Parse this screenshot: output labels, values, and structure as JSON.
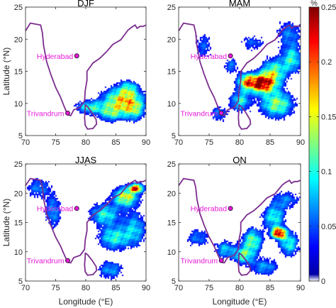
{
  "figure": {
    "panels": [
      {
        "title": "DJF",
        "show_ylabel": true,
        "show_xlabel": false,
        "intensity": 0.35,
        "blobs": [
          [
            86,
            10.5,
            3.2,
            2.0,
            0.16
          ],
          [
            80.5,
            9.5,
            2.2,
            1.0,
            0.1
          ],
          [
            84,
            8.5,
            2.0,
            1.2,
            0.08
          ],
          [
            88,
            9,
            1.6,
            1.6,
            0.08
          ],
          [
            87,
            12.5,
            1.5,
            1.2,
            0.07
          ]
        ]
      },
      {
        "title": "MAM",
        "show_ylabel": false,
        "show_xlabel": false,
        "intensity": 1.0,
        "blobs": [
          [
            83.5,
            13.2,
            2.0,
            1.4,
            0.24
          ],
          [
            81,
            13.5,
            1.4,
            1.2,
            0.15
          ],
          [
            85.5,
            15,
            2.0,
            2.0,
            0.12
          ],
          [
            86,
            10,
            2.6,
            2.0,
            0.13
          ],
          [
            80,
            10.5,
            1.6,
            1.6,
            0.1
          ],
          [
            88.5,
            17,
            1.6,
            2.0,
            0.1
          ],
          [
            78.5,
            16,
            1.3,
            1.2,
            0.06
          ],
          [
            74,
            19,
            1.6,
            2.4,
            0.05
          ],
          [
            88,
            21,
            2.2,
            2.2,
            0.06
          ],
          [
            82,
            19.5,
            2.2,
            1.4,
            0.05
          ],
          [
            76.5,
            8.5,
            1.5,
            1.3,
            0.06
          ]
        ]
      },
      {
        "title": "JJAS",
        "show_ylabel": true,
        "show_xlabel": true,
        "intensity": 0.8,
        "blobs": [
          [
            88.3,
            21,
            1.1,
            0.7,
            0.2
          ],
          [
            86.5,
            19.5,
            2.0,
            1.6,
            0.15
          ],
          [
            83,
            16.5,
            2.4,
            1.8,
            0.1
          ],
          [
            84.5,
            12.5,
            2.4,
            2.0,
            0.1
          ],
          [
            74.5,
            17,
            1.4,
            2.8,
            0.07
          ],
          [
            72,
            21,
            2.2,
            1.8,
            0.06
          ],
          [
            88,
            14,
            2.0,
            3.0,
            0.08
          ],
          [
            84,
            7,
            2.2,
            1.6,
            0.07
          ]
        ]
      },
      {
        "title": "ON",
        "show_ylabel": false,
        "show_xlabel": true,
        "intensity": 0.85,
        "blobs": [
          [
            86.3,
            13.3,
            1.1,
            0.9,
            0.24
          ],
          [
            82,
            12,
            1.6,
            2.0,
            0.12
          ],
          [
            85.5,
            16,
            1.8,
            2.0,
            0.1
          ],
          [
            80.5,
            9.5,
            1.6,
            1.4,
            0.11
          ],
          [
            88,
            11.5,
            1.6,
            2.0,
            0.1
          ],
          [
            77.5,
            10.5,
            1.6,
            1.5,
            0.08
          ],
          [
            73,
            12.5,
            2.0,
            1.6,
            0.06
          ],
          [
            84,
            7.5,
            2.4,
            1.5,
            0.07
          ],
          [
            87.5,
            19,
            2.4,
            1.6,
            0.06
          ]
        ]
      }
    ],
    "x_ticks": [
      "70",
      "75",
      "80",
      "85",
      "90"
    ],
    "y_ticks": [
      "5",
      "10",
      "15",
      "20",
      "25"
    ],
    "xlabel": "Longitude (°E)",
    "ylabel": "Latitude (°N)",
    "colorbar": {
      "unit": "%",
      "ticks": [
        "0",
        "0.05",
        "0.1",
        "0.15",
        "0.2",
        "0.25"
      ],
      "colors": [
        "#00008f",
        "#0000ff",
        "#0080ff",
        "#00ffff",
        "#80ff80",
        "#ffff00",
        "#ff8000",
        "#ff0000",
        "#800000"
      ]
    },
    "cities": [
      {
        "name": "Hyderabad",
        "lon": 78.5,
        "lat": 17.4
      },
      {
        "name": "Trivandrum",
        "lon": 77.0,
        "lat": 8.5
      }
    ],
    "coast_color": "#7b2d8e",
    "city_color": "#e619d9"
  }
}
